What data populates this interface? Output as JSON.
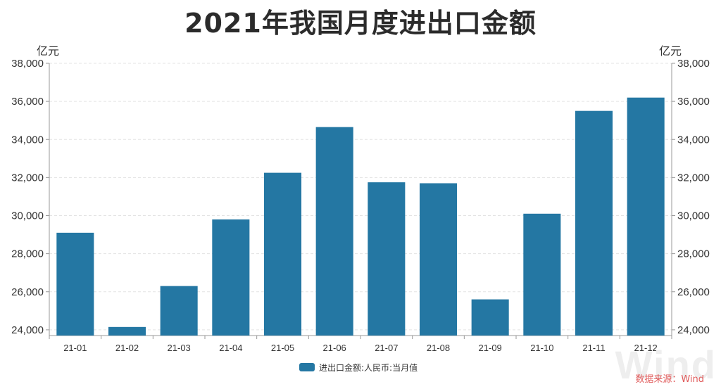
{
  "chart_data": {
    "type": "bar",
    "title": "2021年我国月度进出口金额",
    "ylabel_left": "亿元",
    "ylabel_right": "亿元",
    "categories": [
      "21-01",
      "21-02",
      "21-03",
      "21-04",
      "21-05",
      "21-06",
      "21-07",
      "21-08",
      "21-09",
      "21-10",
      "21-11",
      "21-12"
    ],
    "series": [
      {
        "name": "进出口金额:人民币:当月值",
        "color": "#2477a3",
        "values": [
          29100,
          24150,
          26300,
          29800,
          32250,
          34650,
          31750,
          31700,
          25600,
          30100,
          35500,
          36200
        ]
      }
    ],
    "ylim": [
      23700,
      38000
    ],
    "yticks": [
      24000,
      26000,
      28000,
      30000,
      32000,
      34000,
      36000,
      38000
    ],
    "ytick_labels": [
      "24,000",
      "26,000",
      "28,000",
      "30,000",
      "32,000",
      "34,000",
      "36,000",
      "38,000"
    ],
    "grid": true,
    "legend_position": "bottom-center"
  },
  "source_label": "数据来源：Wind",
  "watermark_text": "Wind"
}
